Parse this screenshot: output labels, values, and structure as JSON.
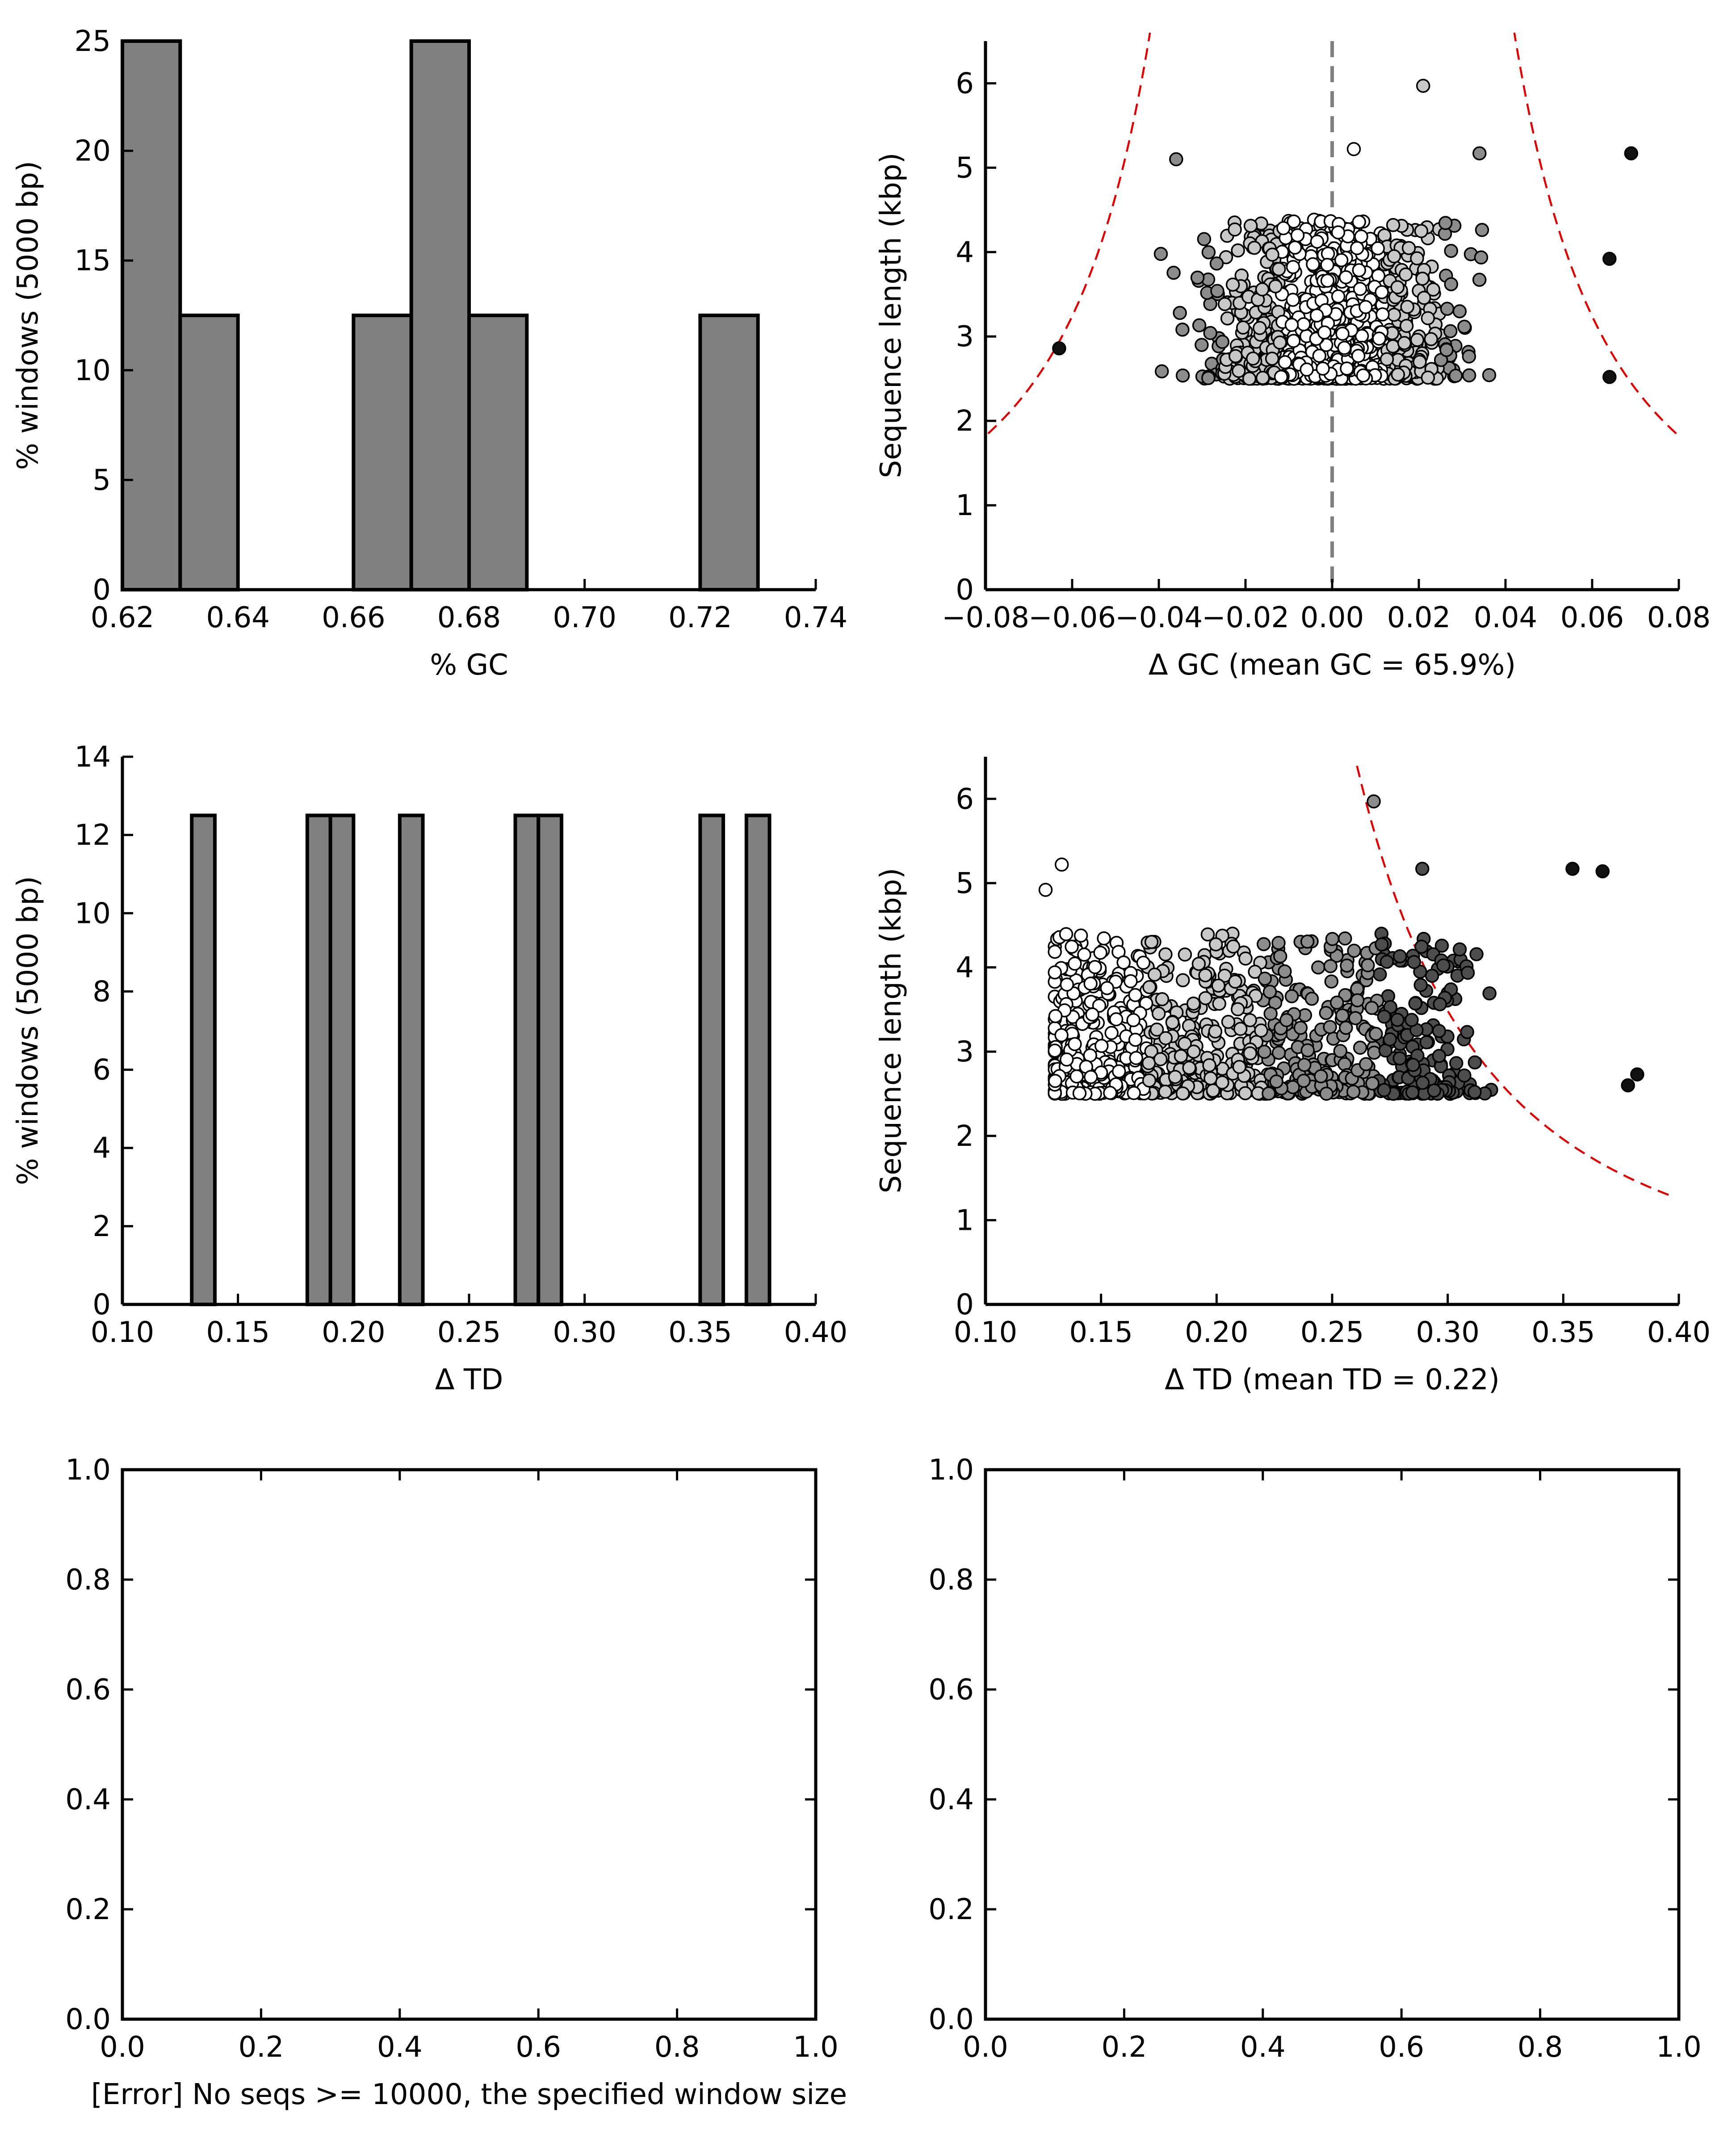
{
  "chart_data": [
    {
      "id": "gc-hist",
      "type": "bar",
      "xlabel": "% GC",
      "ylabel": "% windows (5000 bp)",
      "xlim": [
        0.62,
        0.74
      ],
      "ylim": [
        0,
        25
      ],
      "xticks": [
        "0.62",
        "0.64",
        "0.66",
        "0.68",
        "0.70",
        "0.72",
        "0.74"
      ],
      "yticks": [
        "0",
        "5",
        "10",
        "15",
        "20",
        "25"
      ],
      "bin_width": 0.01,
      "bins": [
        {
          "x0": 0.62,
          "value": 25
        },
        {
          "x0": 0.63,
          "value": 12.5
        },
        {
          "x0": 0.66,
          "value": 12.5
        },
        {
          "x0": 0.67,
          "value": 25
        },
        {
          "x0": 0.68,
          "value": 12.5
        },
        {
          "x0": 0.72,
          "value": 12.5
        }
      ],
      "bar_color": "#808080",
      "grid": false
    },
    {
      "id": "gc-scatter",
      "type": "scatter",
      "xlabel": "Δ GC (mean GC = 65.9%)",
      "ylabel": "Sequence length (kbp)",
      "xlim": [
        -0.08,
        0.08
      ],
      "ylim": [
        0,
        6.5
      ],
      "xticks": [
        "−0.08",
        "−0.06",
        "−0.04",
        "−0.02",
        "0.00",
        "0.02",
        "0.04",
        "0.06",
        "0.08"
      ],
      "yticks": [
        "0",
        "1",
        "2",
        "3",
        "4",
        "5",
        "6"
      ],
      "reference_line": {
        "x": 0.0,
        "style": "dashed",
        "color": "#808080"
      },
      "threshold_curves": {
        "color": "#e00000",
        "style": "dashed",
        "left_formula": "x = -0.108 / sqrt(L)",
        "right_formula": "x = 0.108 / sqrt(L)",
        "x_range_right": [
          0.042,
          0.073
        ]
      },
      "highlight_points": [
        {
          "x": 0.021,
          "y": 5.97
        },
        {
          "x": 0.069,
          "y": 5.17
        },
        {
          "x": 0.034,
          "y": 5.17
        },
        {
          "x": -0.036,
          "y": 5.1
        },
        {
          "x": 0.005,
          "y": 5.22
        },
        {
          "x": -0.063,
          "y": 2.86
        },
        {
          "x": 0.064,
          "y": 2.52
        },
        {
          "x": 0.064,
          "y": 3.92
        }
      ],
      "cloud": {
        "count": 900,
        "x_range": [
          -0.063,
          0.064
        ],
        "y_range": [
          2.5,
          4.4
        ]
      },
      "point_colors": [
        "#ffffff",
        "#c8c8c8",
        "#8c8c8c",
        "#4d4d4d",
        "#111111"
      ],
      "grid": false
    },
    {
      "id": "td-hist",
      "type": "bar",
      "xlabel": "Δ TD",
      "ylabel": "% windows (5000 bp)",
      "xlim": [
        0.1,
        0.4
      ],
      "ylim": [
        0,
        14
      ],
      "xticks": [
        "0.10",
        "0.15",
        "0.20",
        "0.25",
        "0.30",
        "0.35",
        "0.40"
      ],
      "yticks": [
        "0",
        "2",
        "4",
        "6",
        "8",
        "10",
        "12",
        "14"
      ],
      "bin_width": 0.01,
      "bins": [
        {
          "x0": 0.13,
          "value": 12.5
        },
        {
          "x0": 0.18,
          "value": 12.5
        },
        {
          "x0": 0.19,
          "value": 12.5
        },
        {
          "x0": 0.22,
          "value": 12.5
        },
        {
          "x0": 0.27,
          "value": 12.5
        },
        {
          "x0": 0.28,
          "value": 12.5
        },
        {
          "x0": 0.35,
          "value": 12.5
        },
        {
          "x0": 0.37,
          "value": 12.5
        }
      ],
      "bar_color": "#808080",
      "grid": false
    },
    {
      "id": "td-scatter",
      "type": "scatter",
      "xlabel": "Δ TD (mean TD = 0.22)",
      "ylabel": "Sequence length (kbp)",
      "xlim": [
        0.1,
        0.4
      ],
      "ylim": [
        0,
        6.5
      ],
      "xticks": [
        "0.10",
        "0.15",
        "0.20",
        "0.25",
        "0.30",
        "0.35",
        "0.40"
      ],
      "yticks": [
        "0",
        "1",
        "2",
        "3",
        "4",
        "5",
        "6"
      ],
      "threshold_curves": {
        "color": "#e00000",
        "style": "dashed",
        "formula": "x = 0.22 + 0.28 / sqrt(L)",
        "x_range": [
          0.26,
          0.4
        ]
      },
      "highlight_points": [
        {
          "x": 0.126,
          "y": 4.92
        },
        {
          "x": 0.133,
          "y": 5.22
        },
        {
          "x": 0.268,
          "y": 5.97
        },
        {
          "x": 0.289,
          "y": 5.17
        },
        {
          "x": 0.354,
          "y": 5.17
        },
        {
          "x": 0.367,
          "y": 5.14
        },
        {
          "x": 0.382,
          "y": 2.73
        },
        {
          "x": 0.378,
          "y": 2.6
        }
      ],
      "cloud": {
        "count": 900,
        "x_range": [
          0.13,
          0.38
        ],
        "y_range": [
          2.5,
          4.4
        ]
      },
      "point_colors": [
        "#ffffff",
        "#c8c8c8",
        "#8c8c8c",
        "#4d4d4d",
        "#111111"
      ],
      "grid": false
    },
    {
      "id": "empty-left",
      "type": "scatter",
      "xlabel": "[Error] No seqs >= 10000, the specified window size",
      "ylabel": "",
      "xlim": [
        0.0,
        1.0
      ],
      "ylim": [
        0.0,
        1.0
      ],
      "xticks": [
        "0.0",
        "0.2",
        "0.4",
        "0.6",
        "0.8",
        "1.0"
      ],
      "yticks": [
        "0.0",
        "0.2",
        "0.4",
        "0.6",
        "0.8",
        "1.0"
      ],
      "grid": false
    },
    {
      "id": "empty-right",
      "type": "scatter",
      "xlabel": "",
      "ylabel": "",
      "xlim": [
        0.0,
        1.0
      ],
      "ylim": [
        0.0,
        1.0
      ],
      "xticks": [
        "0.0",
        "0.2",
        "0.4",
        "0.6",
        "0.8",
        "1.0"
      ],
      "yticks": [
        "0.0",
        "0.2",
        "0.4",
        "0.6",
        "0.8",
        "1.0"
      ],
      "grid": false
    }
  ]
}
